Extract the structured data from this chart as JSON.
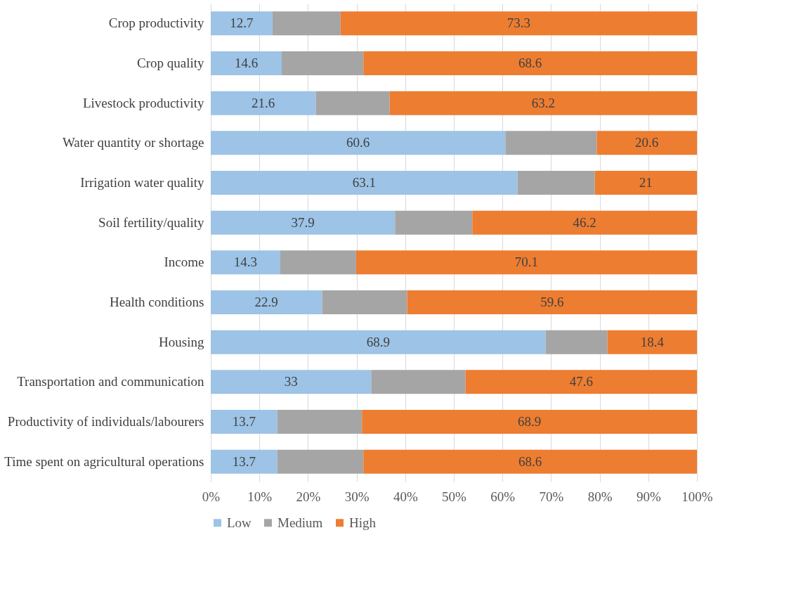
{
  "chart_data": {
    "type": "bar",
    "orientation": "horizontal",
    "stacked": true,
    "categories": [
      "Crop productivity",
      "Crop quality",
      "Livestock productivity",
      "Water quantity or shortage",
      "Irrigation water quality",
      "Soil fertility/quality",
      "Income",
      "Health conditions",
      "Housing",
      "Transportation and communication",
      "Productivity of individuals/labourers",
      "Time spent on agricultural operations"
    ],
    "series": [
      {
        "name": "Low",
        "color": "#9dc3e6",
        "values": [
          12.7,
          14.6,
          21.6,
          60.6,
          63.1,
          37.9,
          14.3,
          22.9,
          68.9,
          33,
          13.7,
          13.7
        ],
        "value_labels": [
          "12.7",
          "14.6",
          "21.6",
          "60.6",
          "63.1",
          "37.9",
          "14.3",
          "22.9",
          "68.9",
          "33",
          "13.7",
          "13.7"
        ]
      },
      {
        "name": "Medium",
        "color": "#a5a5a5",
        "values": [
          14,
          16.8,
          15.2,
          18.8,
          15.9,
          15.9,
          15.6,
          17.5,
          12.7,
          19.4,
          17.4,
          17.7
        ]
      },
      {
        "name": "High",
        "color": "#ed7d31",
        "values": [
          73.3,
          68.6,
          63.2,
          20.6,
          21,
          46.2,
          70.1,
          59.6,
          18.4,
          47.6,
          68.9,
          68.6
        ],
        "value_labels": [
          "73.3",
          "68.6",
          "63.2",
          "20.6",
          "21",
          "46.2",
          "70.1",
          "59.6",
          "18.4",
          "47.6",
          "68.9",
          "68.6"
        ]
      }
    ],
    "xlim": [
      0,
      100
    ],
    "xticks": [
      {
        "value": 0,
        "label": "0%"
      },
      {
        "value": 10,
        "label": "10%"
      },
      {
        "value": 20,
        "label": "20%"
      },
      {
        "value": 30,
        "label": "30%"
      },
      {
        "value": 40,
        "label": "40%"
      },
      {
        "value": 50,
        "label": "50%"
      },
      {
        "value": 60,
        "label": "60%"
      },
      {
        "value": 70,
        "label": "70%"
      },
      {
        "value": 80,
        "label": "80%"
      },
      {
        "value": 90,
        "label": "90%"
      },
      {
        "value": 100,
        "label": "100%"
      }
    ],
    "grid": "x",
    "legend": "bottom"
  }
}
